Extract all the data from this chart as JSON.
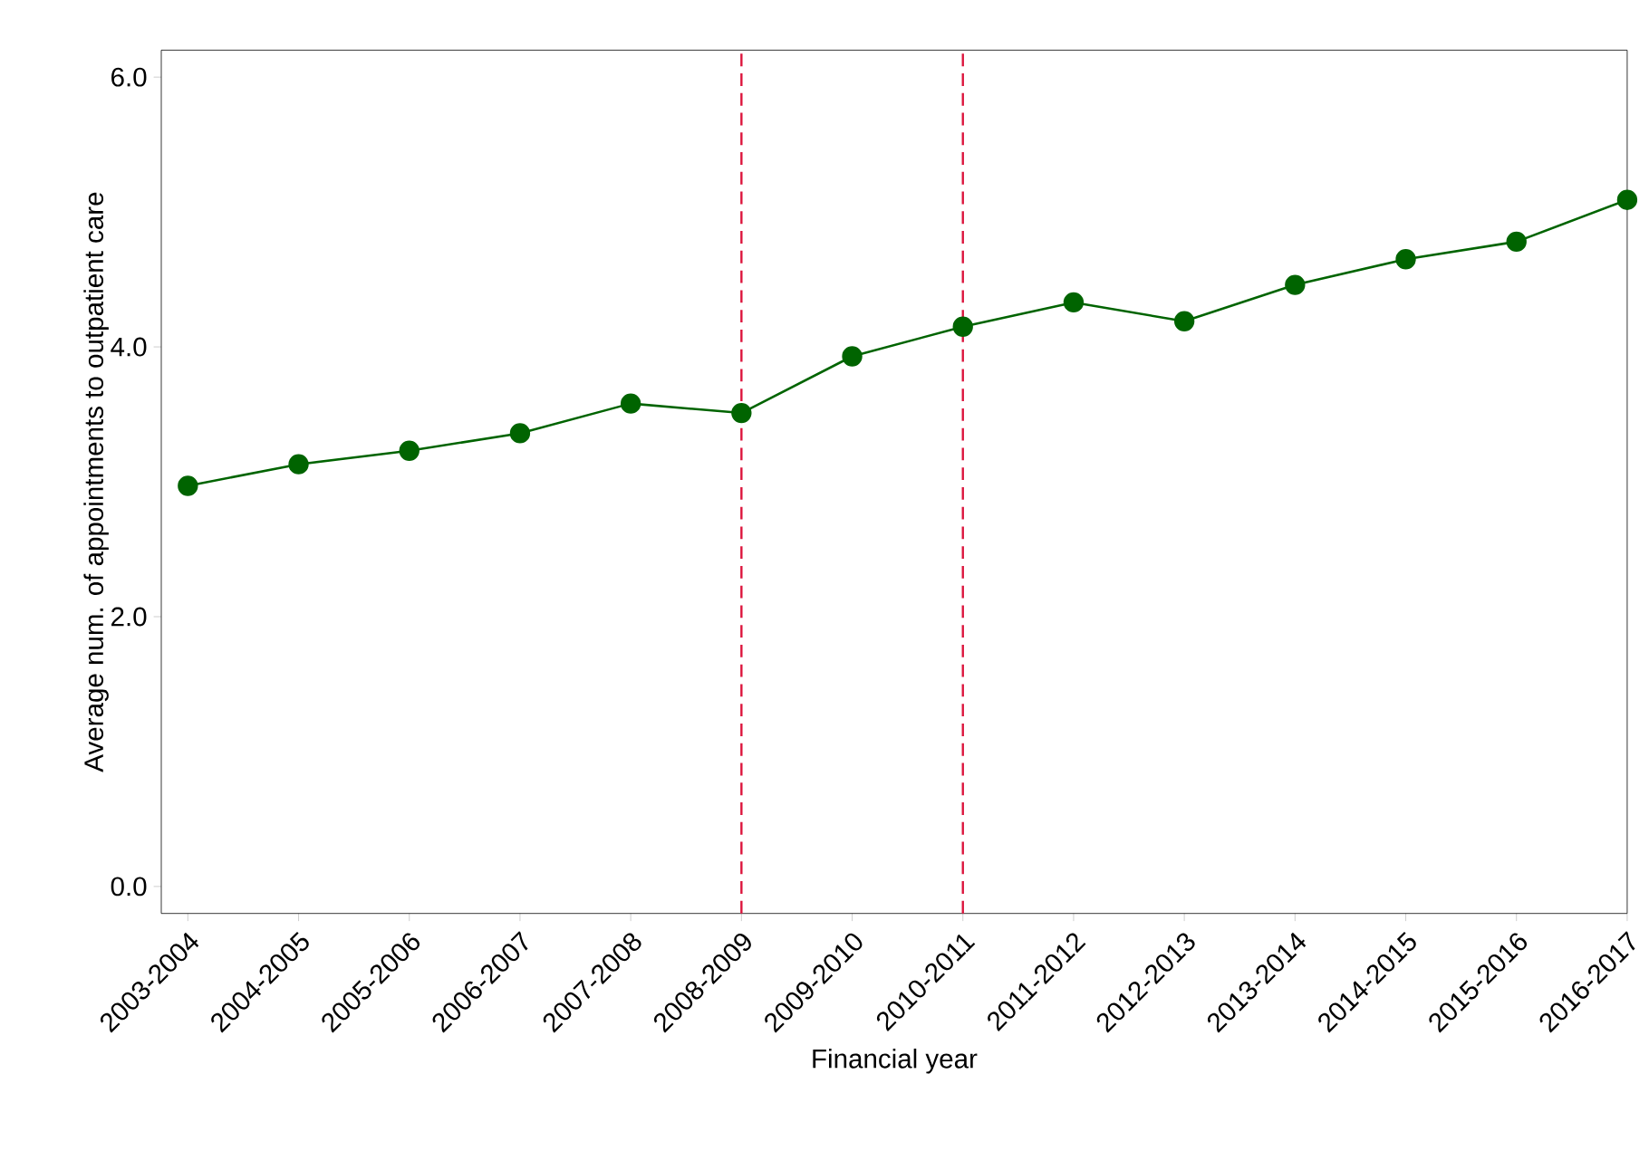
{
  "chart_data": {
    "type": "line",
    "xlabel": "Financial year",
    "ylabel": "Average num. of appointments to outpatient care",
    "categories": [
      "2003-2004",
      "2004-2005",
      "2005-2006",
      "2006-2007",
      "2007-2008",
      "2008-2009",
      "2009-2010",
      "2010-2011",
      "2011-2012",
      "2012-2013",
      "2013-2014",
      "2014-2015",
      "2015-2016",
      "2016-2017"
    ],
    "series": [
      {
        "color": "#006400",
        "values": [
          2.97,
          3.13,
          3.23,
          3.36,
          3.58,
          3.51,
          3.93,
          4.15,
          4.33,
          4.19,
          4.46,
          4.65,
          4.78,
          5.09
        ]
      }
    ],
    "ylim": [
      -0.2,
      6.2
    ],
    "yticks": [
      {
        "value": 0,
        "label": "0.0"
      },
      {
        "value": 2,
        "label": "2.0"
      },
      {
        "value": 4,
        "label": "4.0"
      },
      {
        "value": 6,
        "label": "6.0"
      }
    ],
    "ref_lines": [
      {
        "axis": "x",
        "value": "2008-2009",
        "color": "#dc143c",
        "line_style": "dashed"
      },
      {
        "axis": "x",
        "value": "2010-2011",
        "color": "#dc143c",
        "line_style": "dashed"
      }
    ],
    "marker": "circle",
    "line_style": "solid"
  }
}
